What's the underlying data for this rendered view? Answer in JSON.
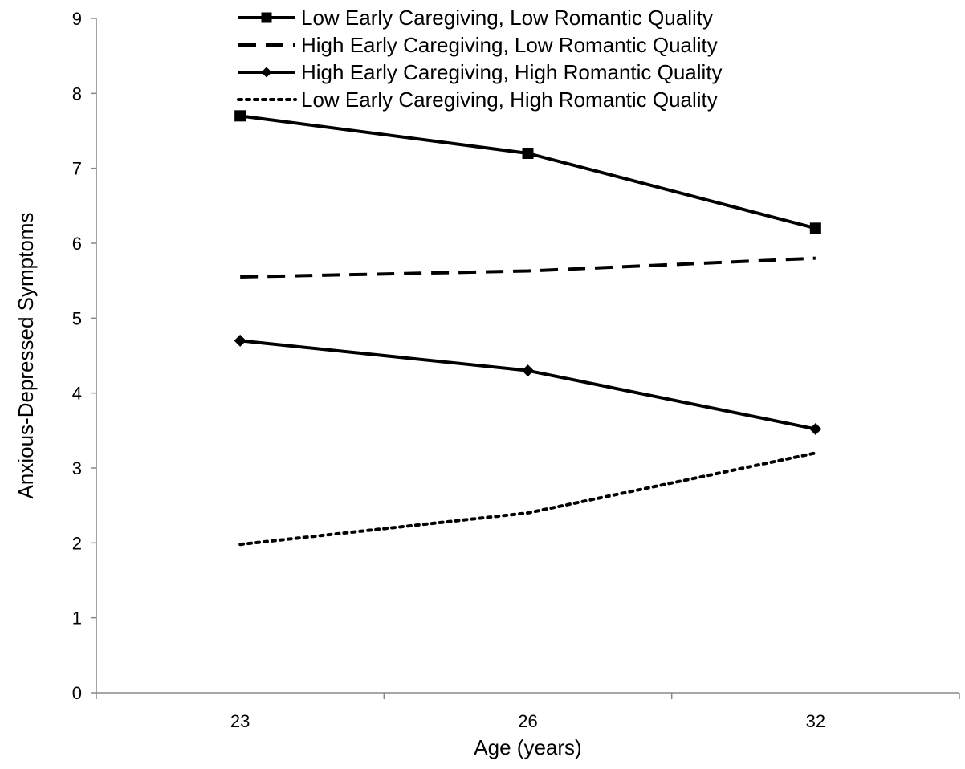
{
  "chart_data": {
    "type": "line",
    "xlabel": "Age (years)",
    "ylabel": "Anxious-Depressed Symptoms",
    "categories": [
      "23",
      "26",
      "32"
    ],
    "y_ticks": [
      "0",
      "1",
      "2",
      "3",
      "4",
      "5",
      "6",
      "7",
      "8",
      "9"
    ],
    "ylim": [
      0,
      9
    ],
    "grid": false,
    "legend_position": "top",
    "series": [
      {
        "name": "Low Early Caregiving, Low Romantic Quality",
        "values": [
          7.7,
          7.2,
          6.2
        ],
        "line_style": "solid",
        "marker": "square",
        "color": "#000000"
      },
      {
        "name": "High Early Caregiving, Low Romantic Quality",
        "values": [
          5.55,
          5.63,
          5.8
        ],
        "line_style": "dashed",
        "marker": "none",
        "color": "#000000"
      },
      {
        "name": "High Early Caregiving, High Romantic Quality",
        "values": [
          4.7,
          4.3,
          3.52
        ],
        "line_style": "solid",
        "marker": "diamond",
        "color": "#000000"
      },
      {
        "name": "Low Early Caregiving, High Romantic Quality",
        "values": [
          1.98,
          2.4,
          3.2
        ],
        "line_style": "dotted",
        "marker": "none",
        "color": "#000000"
      }
    ]
  }
}
